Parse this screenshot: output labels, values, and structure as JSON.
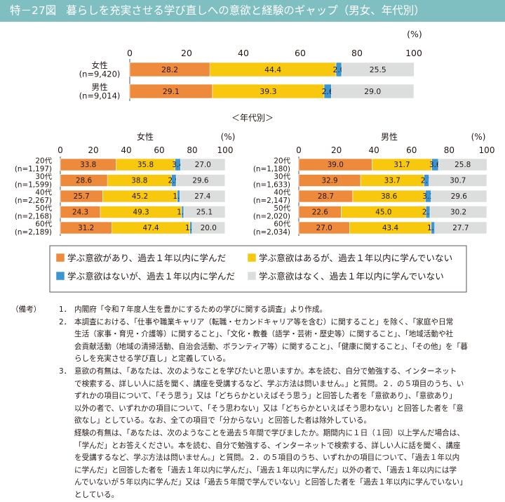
{
  "title": {
    "figure_no": "特－27図",
    "text": "暮らしを充実させる学び直しへの意欲と経験のギャップ（男女、年代別）"
  },
  "colors": {
    "learned_motivated": "#ee8a3c",
    "motivated_not_learned": "#f7c80e",
    "learned_unmotivated": "#3b95d1",
    "neither": "#dcdddd"
  },
  "chart_data": [
    {
      "type": "bar",
      "stacked": true,
      "orientation": "horizontal",
      "unit_label": "(%)",
      "xlim": [
        0,
        100
      ],
      "ticks": [
        "0",
        "20",
        "40",
        "60",
        "80",
        "100"
      ],
      "categories": [
        {
          "name": "女性",
          "n": "(n=9,420)"
        },
        {
          "name": "男性",
          "n": "(n=9,014)"
        }
      ],
      "series": [
        {
          "name": "学ぶ意欲があり、過去１年以内に学んだ",
          "values": [
            28.2,
            29.1
          ]
        },
        {
          "name": "学ぶ意欲はあるが、過去１年以内に学んでいない",
          "values": [
            44.4,
            39.3
          ]
        },
        {
          "name": "学ぶ意欲はないが、過去１年以内に学んだ",
          "values": [
            2.0,
            2.6
          ]
        },
        {
          "name": "学ぶ意欲はなく、過去１年以内に学んでいない",
          "values": [
            25.5,
            29.0
          ]
        }
      ]
    },
    {
      "type": "bar",
      "stacked": true,
      "orientation": "horizontal",
      "title": "女性",
      "unit_label": "(%)",
      "xlim": [
        0,
        100
      ],
      "ticks": [
        "0",
        "20",
        "40",
        "60",
        "80",
        "100"
      ],
      "categories": [
        {
          "name": "20代",
          "n": "(n=1,197)"
        },
        {
          "name": "30代",
          "n": "(n=1,599)"
        },
        {
          "name": "40代",
          "n": "(n=2,267)"
        },
        {
          "name": "50代",
          "n": "(n=2,168)"
        },
        {
          "name": "60代",
          "n": "(n=2,189)"
        }
      ],
      "series": [
        {
          "name": "学ぶ意欲があり、過去１年以内に学んだ",
          "values": [
            33.8,
            28.6,
            25.7,
            24.3,
            31.2
          ]
        },
        {
          "name": "学ぶ意欲はあるが、過去１年以内に学んでいない",
          "values": [
            35.8,
            38.8,
            45.2,
            49.3,
            47.4
          ]
        },
        {
          "name": "学ぶ意欲はないが、過去１年以内に学んだ",
          "values": [
            3.4,
            2.9,
            1.7,
            1.3,
            1.3
          ]
        },
        {
          "name": "学ぶ意欲はなく、過去１年以内に学んでいない",
          "values": [
            27.0,
            29.6,
            27.4,
            25.1,
            20.0
          ]
        }
      ]
    },
    {
      "type": "bar",
      "stacked": true,
      "orientation": "horizontal",
      "title": "男性",
      "unit_label": "(%)",
      "xlim": [
        0,
        100
      ],
      "ticks": [
        "0",
        "20",
        "40",
        "60",
        "80",
        "100"
      ],
      "categories": [
        {
          "name": "20代",
          "n": "(n=1,180)"
        },
        {
          "name": "30代",
          "n": "(n=1,633)"
        },
        {
          "name": "40代",
          "n": "(n=2,147)"
        },
        {
          "name": "50代",
          "n": "(n=2,020)"
        },
        {
          "name": "60代",
          "n": "(n=2,034)"
        }
      ],
      "series": [
        {
          "name": "学ぶ意欲があり、過去１年以内に学んだ",
          "values": [
            39.0,
            32.9,
            28.7,
            22.6,
            27.0
          ]
        },
        {
          "name": "学ぶ意欲はあるが、過去１年以内に学んでいない",
          "values": [
            31.7,
            33.7,
            38.6,
            45.0,
            43.4
          ]
        },
        {
          "name": "学ぶ意欲はないが、過去１年以内に学んだ",
          "values": [
            3.6,
            2.7,
            3.1,
            2.2,
            1.9
          ]
        },
        {
          "name": "学ぶ意欲はなく、過去１年以内に学んでいない",
          "values": [
            25.8,
            30.7,
            29.6,
            30.2,
            27.7
          ]
        }
      ]
    }
  ],
  "age_section_label": "＜年代別＞",
  "notes": {
    "head": "（備考）",
    "items": [
      {
        "num": "1．",
        "lines": [
          "内閣府「令和７年度人生を豊かにするための学びに関する調査」より作成。"
        ]
      },
      {
        "num": "2．",
        "lines": [
          "本調査における、「仕事や職業キャリア（転職・セカンドキャリア等を含む）に関すること」を除く、「家庭や日常",
          "生活（家事・育児・介護等）に関すること」、「文化・教養（語学・芸術・歴史等）に関すること」、「地域活動や社",
          "会貢献活動（地域の清掃活動、自治会活動、ボランティア等）に関すること」、「健康に関すること」、「その他」を「暮",
          "らしを充実させる学び直し」と定義している。"
        ]
      },
      {
        "num": "3．",
        "lines": [
          "意欲の有無は、「あなたは、次のようなことを学びたいと思いますか。本を読む、自分で勉強する、インターネット",
          "で検索する、詳しい人に話を聞く、講座を受講するなど、学ぶ方法は問いません。」と質問。２．の５項目のうち、い",
          "ずれかの項目について、「そう思う」又は「どちらかといえばそう思う」と回答した者を「意欲あり」、「意欲あり」",
          "以外の者で、いずれかの項目について、「そう思わない」又は「どちらかといえばそう思わない」と回答した者を「意",
          "欲なし」としている。なお、全ての項目で「分からない」と回答した者は除外している。",
          "経験の有無は、「あなたは、次のようなことを過去５年間で学びましたか。期間内に１日（１回）以上学んだ場合は、",
          "「学んだ」とお答えください。本を読む、自分で勉強する、インターネットで検索する、詳しい人に話を聞く、講座",
          "を受講するなど、学ぶ方法は問いません。」と質問。２．の５項目のうち、いずれかの項目について、「過去１年以内",
          "に学んだ」と回答した者を「過去１年以内に学んだ」、「過去１年以内に学んだ」以外の者で、「過去１年以内には学",
          "んでいないが５年以内に学んだ」又は「過去５年間で学んでいない」と回答した者を「過去１年以内に学んでいない」",
          "としている。"
        ]
      }
    ]
  }
}
